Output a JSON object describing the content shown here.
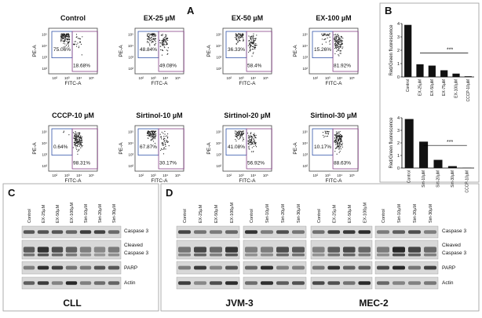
{
  "panels": {
    "a": "A",
    "b": "B",
    "c": "C",
    "d": "D"
  },
  "flow": {
    "x_axis": "FITC-A",
    "y_axis": "PE-A",
    "ticks": [
      "10²",
      "10³",
      "10⁴",
      "10⁵"
    ],
    "plots": [
      {
        "title": "Control",
        "left": "75.06%",
        "right": "18.68%"
      },
      {
        "title": "EX-25 µM",
        "left": "48.84%",
        "right": "49.08%"
      },
      {
        "title": "EX-50 µM",
        "left": "36.33%",
        "right": "58.4%"
      },
      {
        "title": "EX-100 µM",
        "left": "15.26%",
        "right": "81.92%"
      },
      {
        "title": "CCCP-10 µM",
        "left": "0.64%",
        "right": "98.31%"
      },
      {
        "title": "Sirtinol-10 µM",
        "left": "67.87%",
        "right": "30.17%"
      },
      {
        "title": "Sirtinol-20 µM",
        "left": "41.08%",
        "right": "56.92%"
      },
      {
        "title": "Sirtinol-30 µM",
        "left": "10.17%",
        "right": "88.63%"
      }
    ]
  },
  "mito": {
    "y_label": "Red/Green fluorescence",
    "charts": [
      {
        "type": "bar",
        "categories": [
          "Control",
          "EX-25µM",
          "EX-50µM",
          "EX-75µM",
          "EX-100µM",
          "CCCP-10µM"
        ],
        "values": [
          3.9,
          0.95,
          0.85,
          0.5,
          0.25,
          0.05
        ],
        "ylim": [
          0,
          4
        ],
        "yticks": [
          0,
          1,
          2,
          3,
          4
        ],
        "significance": "***"
      },
      {
        "type": "bar",
        "categories": [
          "Control",
          "Sirt-10µM",
          "Sirt-20µM",
          "Sirt-30µM",
          "CCCP-10µM"
        ],
        "values": [
          3.9,
          2.1,
          0.65,
          0.15,
          0.02
        ],
        "ylim": [
          0,
          4
        ],
        "yticks": [
          0,
          1,
          2,
          3,
          4
        ],
        "significance": "***"
      }
    ]
  },
  "cll": {
    "title": "CLL",
    "lanes": [
      "Control",
      "EX-25µM",
      "EX-50µM",
      "EX-100µM",
      "Sirt-10µM",
      "Sirt-20µM",
      "Sirt-30µM"
    ],
    "bands": [
      "Caspase 3",
      "Cleaved",
      "Caspase 3",
      "PARP",
      "Actin"
    ]
  },
  "lines": {
    "jvm": "JVM-3",
    "mec": "MEC-2",
    "ex_lanes": [
      "Control",
      "EX-25µM",
      "EX-50µM",
      "EX-100µM"
    ],
    "sirt_lanes": [
      "Control",
      "Sirt-10µM",
      "Sirt-20µM",
      "Sirt-30µM"
    ],
    "bands": [
      "Caspase 3",
      "Cleaved",
      "Caspase 3",
      "PARP",
      "Actin"
    ]
  }
}
